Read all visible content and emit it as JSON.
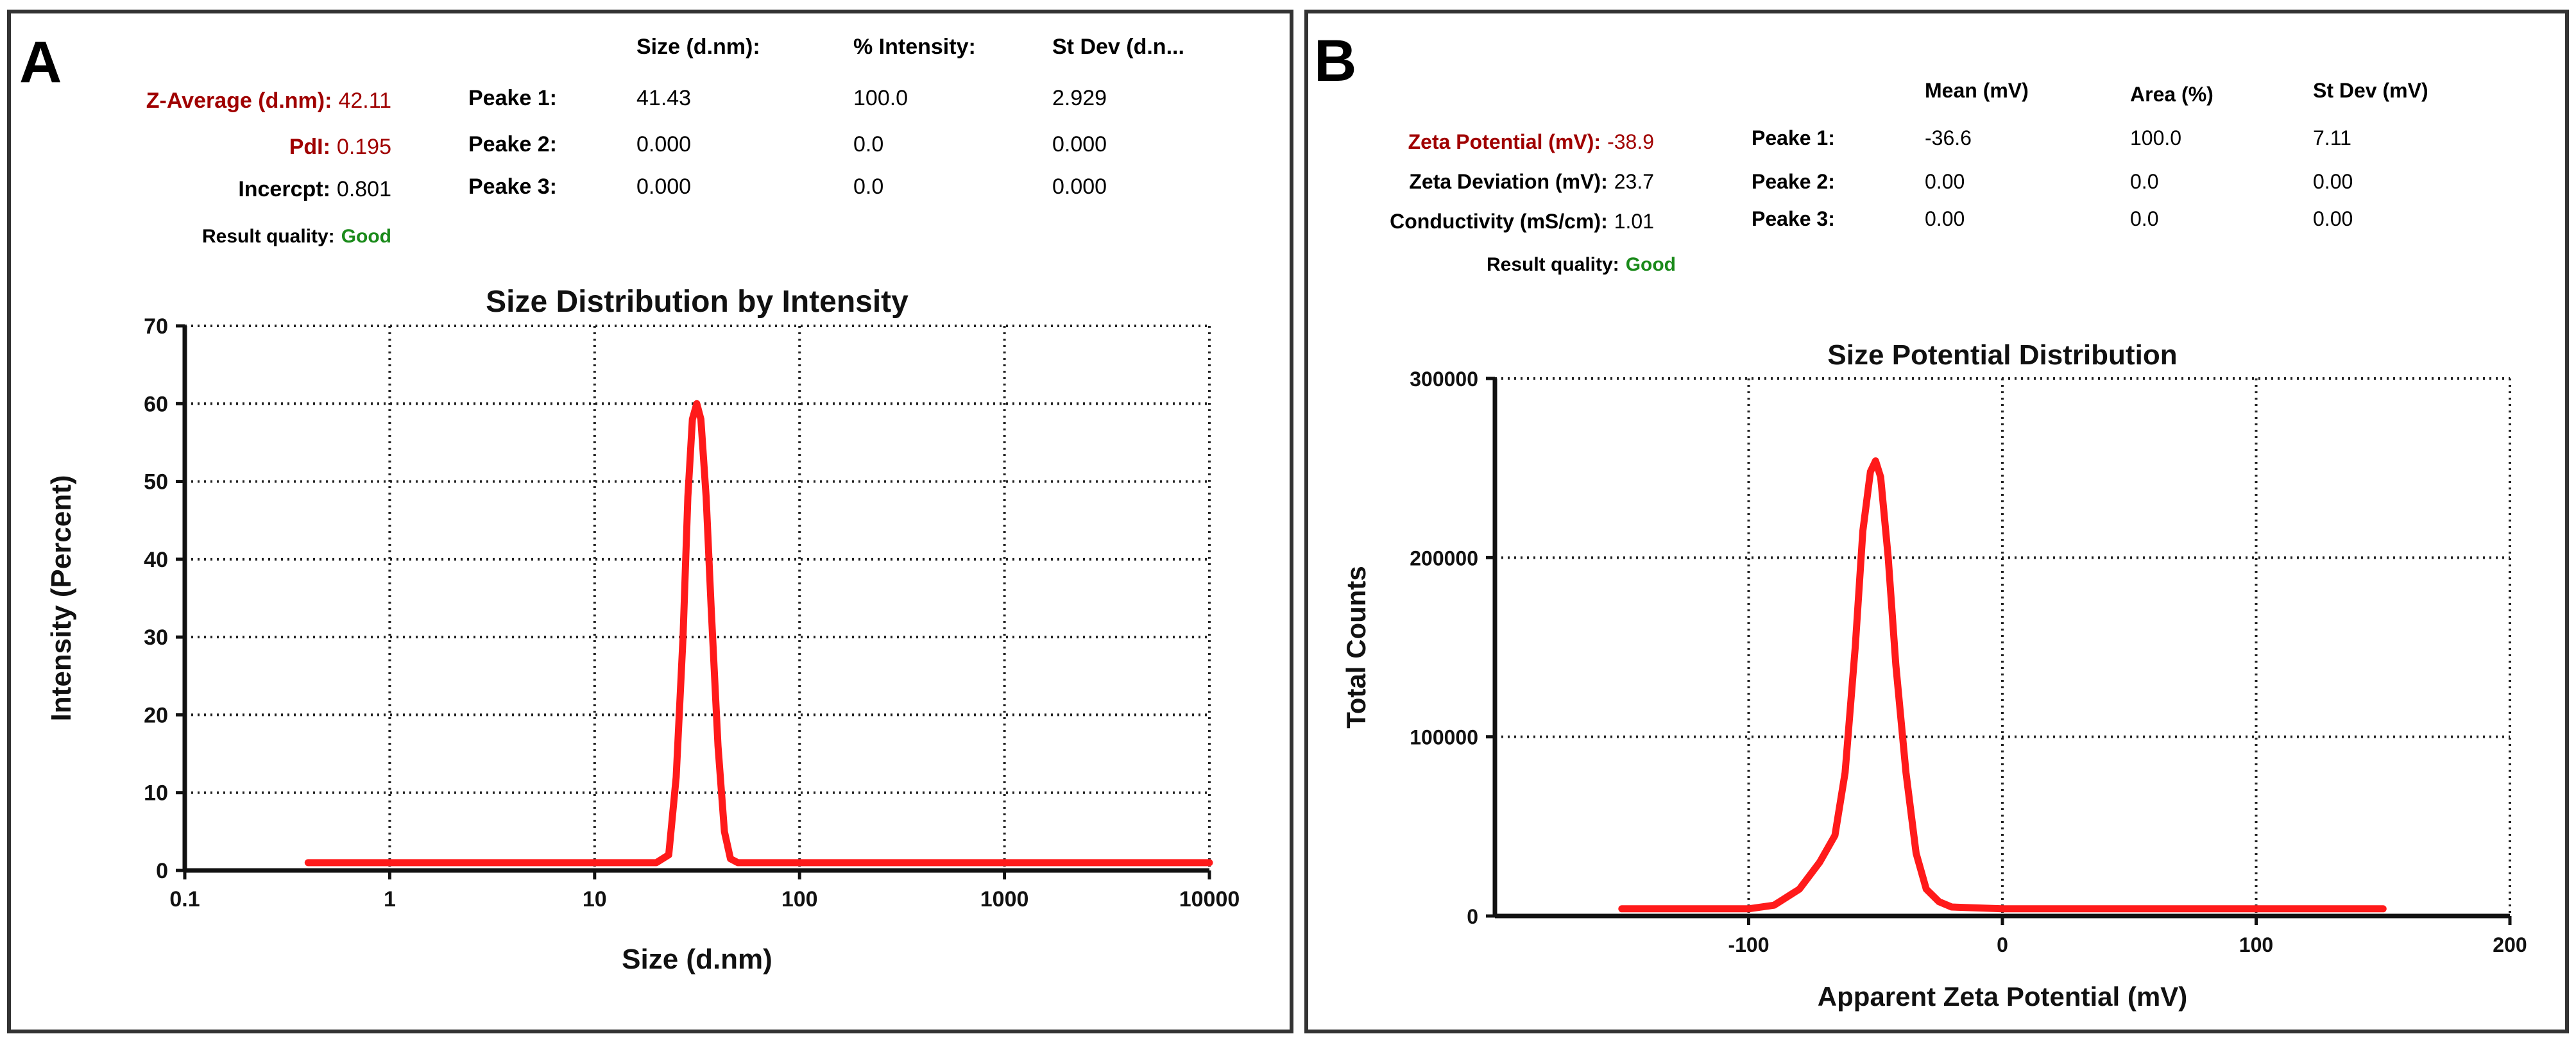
{
  "panel_a": {
    "letter": "A",
    "header": {
      "size": "Size (d.nm):",
      "intensity": "% Intensity:",
      "stdev": "St Dev (d.n..."
    },
    "left": [
      {
        "label": "Z-Average (d.nm):",
        "value": "42.11"
      },
      {
        "label": "PdI:",
        "value": "0.195"
      },
      {
        "label": "Incercpt:",
        "value": "0.801"
      },
      {
        "label": "Result quality:",
        "value": "Good"
      }
    ],
    "peaks": [
      {
        "label": "Peake 1:",
        "c1": "41.43",
        "c2": "100.0",
        "c3": "2.929"
      },
      {
        "label": "Peake 2:",
        "c1": "0.000",
        "c2": "0.0",
        "c3": "0.000"
      },
      {
        "label": "Peake 3:",
        "c1": "0.000",
        "c2": "0.0",
        "c3": "0.000"
      }
    ]
  },
  "panel_b": {
    "letter": "B",
    "header": {
      "mean": "Mean (mV)",
      "area": "Area (%)",
      "stdev": "St Dev (mV)"
    },
    "left": [
      {
        "label": "Zeta Potential (mV):",
        "value": "-38.9"
      },
      {
        "label": "Zeta Deviation (mV):",
        "value": "23.7"
      },
      {
        "label": "Conductivity (mS/cm):",
        "value": "1.01"
      },
      {
        "label": "Result quality:",
        "value": "Good"
      }
    ],
    "peaks": [
      {
        "label": "Peake 1:",
        "c1": "-36.6",
        "c2": "100.0",
        "c3": "7.11"
      },
      {
        "label": "Peake 2:",
        "c1": "0.00",
        "c2": "0.0",
        "c3": "0.00"
      },
      {
        "label": "Peake 3:",
        "c1": "0.00",
        "c2": "0.0",
        "c3": "0.00"
      }
    ]
  },
  "colors": {
    "curve": "#ff1a1a",
    "highlight": "#a00000",
    "good": "#1a8a1a",
    "grid": "#222222",
    "border": "#333333"
  },
  "chart_data": [
    {
      "type": "line",
      "title": "Size Distribution by Intensity",
      "xlabel": "Size (d.nm)",
      "ylabel": "Intensity (Percent)",
      "xscale": "log",
      "xlim": [
        0.1,
        10000
      ],
      "ylim": [
        0,
        70
      ],
      "xticks": [
        0.1,
        1,
        10,
        100,
        1000,
        10000
      ],
      "xtick_labels": [
        "0.1",
        "1",
        "10",
        "100",
        "1000",
        "10000"
      ],
      "yticks": [
        0,
        10,
        20,
        30,
        40,
        50,
        60,
        70
      ],
      "ytick_labels": [
        "0",
        "10",
        "20",
        "30",
        "40",
        "50",
        "60",
        "70"
      ],
      "grid": true,
      "series": [
        {
          "x": [
            0.4,
            10,
            20,
            23,
            25,
            27,
            28.5,
            30,
            31.5,
            33,
            35,
            37,
            40,
            43,
            46,
            50,
            100,
            1000,
            10000
          ],
          "y": [
            1,
            1,
            1,
            2,
            12,
            30,
            48,
            58,
            60,
            58,
            48,
            34,
            16,
            5,
            1.5,
            1,
            1,
            1,
            1
          ]
        }
      ]
    },
    {
      "type": "line",
      "title": "Size Potential Distribution",
      "xlabel": "Apparent Zeta Potential (mV)",
      "ylabel": "Total Counts",
      "xlim": [
        -200,
        200
      ],
      "ylim": [
        0,
        300000
      ],
      "xticks": [
        -100,
        0,
        100,
        200
      ],
      "xtick_labels": [
        "-100",
        "0",
        "100",
        "200"
      ],
      "yticks": [
        0,
        100000,
        200000,
        300000
      ],
      "ytick_labels": [
        "0",
        "100000",
        "200000",
        "300000"
      ],
      "grid": true,
      "series": [
        {
          "x": [
            -150,
            -100,
            -90,
            -80,
            -72,
            -66,
            -62,
            -58,
            -55,
            -52,
            -50,
            -48,
            -45,
            -42,
            -38,
            -34,
            -30,
            -25,
            -20,
            0,
            150
          ],
          "y": [
            4000,
            4000,
            6000,
            15000,
            30000,
            45000,
            80000,
            150000,
            215000,
            248000,
            254000,
            245000,
            200000,
            140000,
            80000,
            35000,
            15000,
            8000,
            5000,
            4000,
            4000
          ]
        }
      ]
    }
  ]
}
